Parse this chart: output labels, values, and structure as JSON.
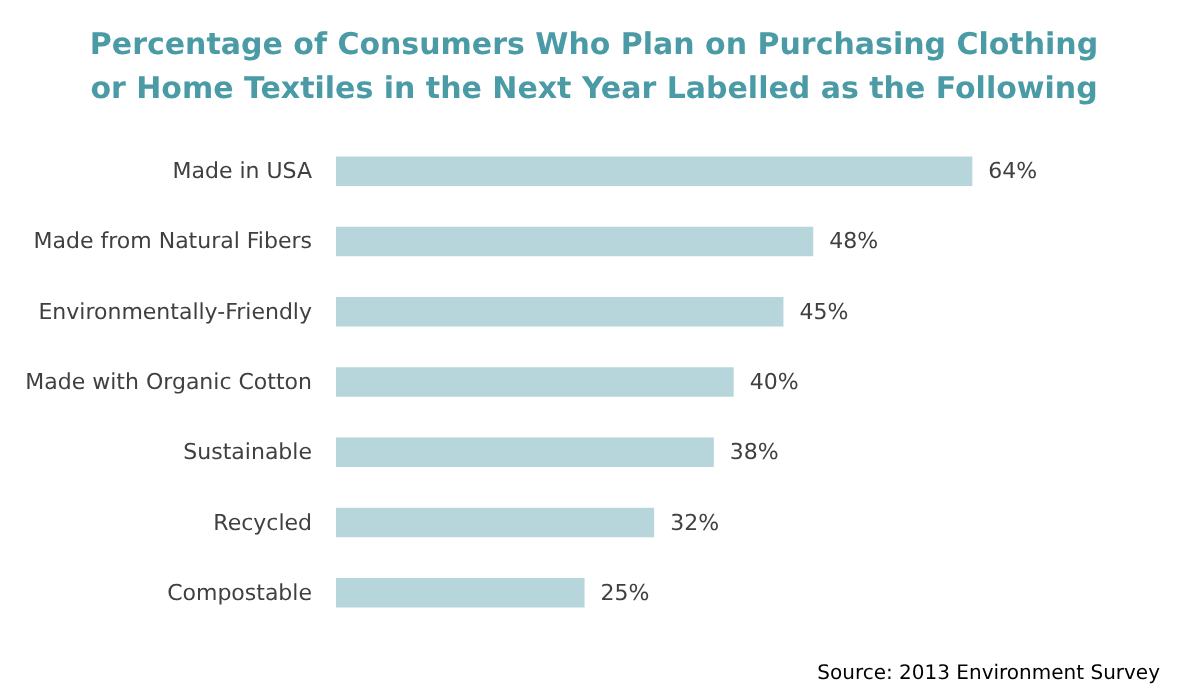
{
  "chart_data": {
    "type": "bar",
    "orientation": "horizontal",
    "title": "Percentage of Consumers Who Plan on Purchasing Clothing\nor Home Textiles in the Next Year Labelled as the Following",
    "categories": [
      "Made in USA",
      "Made from Natural Fibers",
      "Environmentally-Friendly",
      "Made with Organic Cotton",
      "Sustainable",
      "Recycled",
      "Compostable"
    ],
    "values": [
      64,
      48,
      45,
      40,
      38,
      32,
      25
    ],
    "value_labels": [
      "64%",
      "48%",
      "45%",
      "40%",
      "38%",
      "32%",
      "25%"
    ],
    "color": "#b7d6db",
    "annotations": [
      "Source: 2013 Environment Survey"
    ]
  }
}
